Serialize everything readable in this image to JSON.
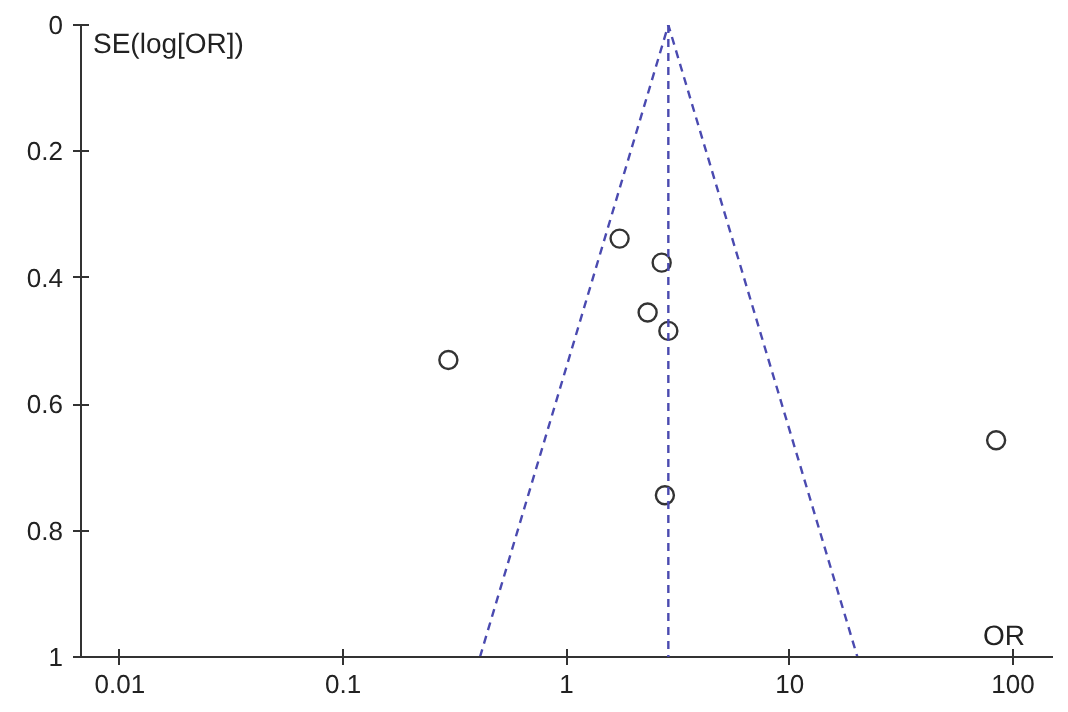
{
  "chart_data": {
    "type": "scatter",
    "xlabel": "OR",
    "ylabel": "SE(log[OR])",
    "log": "x",
    "xlim": [
      0.0067,
      151
    ],
    "xticks": [
      0.01,
      0.1,
      1,
      10,
      100
    ],
    "ylim": [
      1,
      0
    ],
    "yticks": [
      0,
      0.2,
      0.4,
      0.6,
      0.8,
      1
    ],
    "grid": false,
    "marker": "circle",
    "series": [
      {
        "color": "#333333",
        "x": [
          1.73,
          2.67,
          2.31,
          2.86,
          0.296,
          2.76,
          84
        ],
        "values": [
          0.338,
          0.376,
          0.455,
          0.484,
          0.53,
          0.744,
          0.657
        ]
      },
      {
        "type": "line",
        "color": "#4a4ab0",
        "line_style": "dashed",
        "marker": "none",
        "x": [
          0.41,
          2.86,
          20.1
        ],
        "values": [
          1,
          0,
          1
        ]
      }
    ],
    "ref_lines": [
      {
        "axis": "x",
        "value": 2.86,
        "color": "#4a4ab0",
        "line_style": "dashed"
      }
    ]
  }
}
